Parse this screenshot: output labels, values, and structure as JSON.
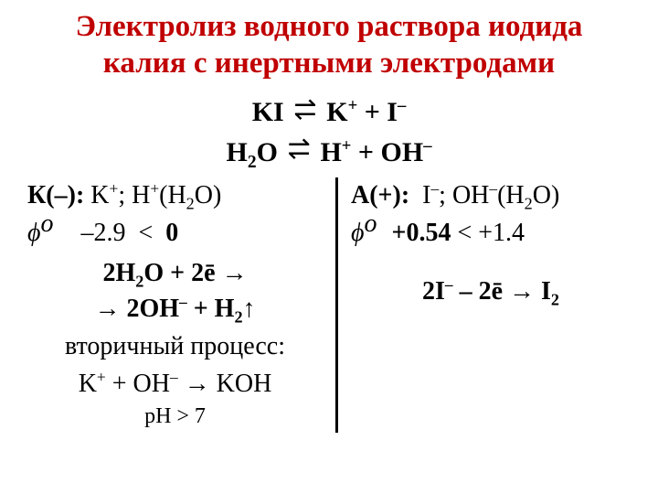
{
  "colors": {
    "title_color": "#c00000",
    "text_color": "#000000",
    "background": "#ffffff",
    "divider_color": "#000000"
  },
  "title": {
    "line1": "Электролиз водного раствора иодида",
    "line2": "калия с инертными электродами"
  },
  "equations": {
    "eq1_left": "KI",
    "eq1_right_a": "K",
    "eq1_right_b": "I",
    "eq2_left_a": "H",
    "eq2_left_b": "O",
    "eq2_right_a": "H",
    "eq2_right_b": "OH"
  },
  "cathode": {
    "label": "К(–):",
    "species_k": "K",
    "species_h": "H",
    "species_h2o": "(H",
    "species_h2o_end": "O)",
    "phi_label": "ϕ",
    "phi_sup": "o",
    "phi_value": "–2.9",
    "phi_cmp": "<",
    "phi_zero": "0",
    "reaction_l1_a": "2H",
    "reaction_l1_b": "O + 2ē →",
    "reaction_l2_a": "→ 2OH",
    "reaction_l2_b": "+ H",
    "reaction_l2_c": "↑",
    "secondary_label": "вторичный процесс:",
    "secondary_eq_a": "K",
    "secondary_eq_b": "+ OH",
    "secondary_eq_c": "→ KOH",
    "ph": "pH > 7"
  },
  "anode": {
    "label": "А(+):",
    "species_i": "I",
    "species_oh": "OH",
    "species_h2o": "(H",
    "species_h2o_end": "O)",
    "phi_label": "ϕ",
    "phi_sup": "o",
    "phi_value": "+0.54",
    "phi_cmp": "< +1.4",
    "reaction_a": "2I",
    "reaction_b": "– 2ē → I"
  }
}
